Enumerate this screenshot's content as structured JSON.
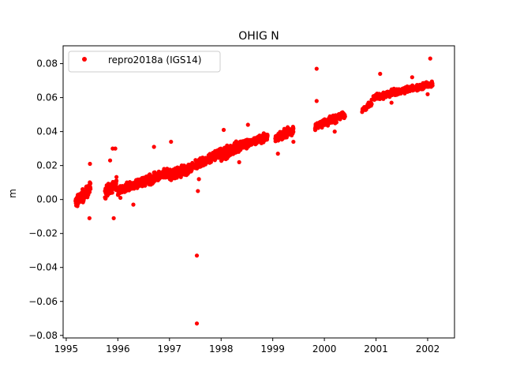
{
  "chart_data": {
    "type": "scatter",
    "title": "OHIG N",
    "xlabel": "",
    "ylabel": "m",
    "xlim": [
      1994.94,
      2002.52
    ],
    "ylim": [
      -0.0815,
      0.0905
    ],
    "xticks": [
      1995,
      1996,
      1997,
      1998,
      1999,
      2000,
      2001,
      2002
    ],
    "xtick_labels": [
      "1995",
      "1996",
      "1997",
      "1998",
      "1999",
      "2000",
      "2001",
      "2002"
    ],
    "yticks": [
      -0.08,
      -0.06,
      -0.04,
      -0.02,
      0.0,
      0.02,
      0.04,
      0.06,
      0.08
    ],
    "ytick_labels": [
      "−0.08",
      "−0.06",
      "−0.04",
      "−0.02",
      "0.00",
      "0.02",
      "0.04",
      "0.06",
      "0.08"
    ],
    "grid": false,
    "legend_position": "top-left",
    "series": [
      {
        "name": "repro2018a (IGS14)",
        "color": "#ff0000",
        "marker": "circle",
        "clusters": [
          {
            "x0": 1995.18,
            "x1": 1995.32,
            "y0": -0.002,
            "y1": 0.003,
            "spread": 0.005,
            "n": 80
          },
          {
            "x0": 1995.32,
            "x1": 1995.47,
            "y0": 0.0,
            "y1": 0.008,
            "spread": 0.006,
            "n": 70
          },
          {
            "x0": 1995.75,
            "x1": 1995.98,
            "y0": 0.004,
            "y1": 0.01,
            "spread": 0.006,
            "n": 90
          },
          {
            "x0": 1996.0,
            "x1": 1996.5,
            "y0": 0.005,
            "y1": 0.011,
            "spread": 0.004,
            "n": 220
          },
          {
            "x0": 1996.5,
            "x1": 1997.0,
            "y0": 0.01,
            "y1": 0.016,
            "spread": 0.005,
            "n": 220
          },
          {
            "x0": 1997.0,
            "x1": 1997.45,
            "y0": 0.014,
            "y1": 0.019,
            "spread": 0.005,
            "n": 190
          },
          {
            "x0": 1997.5,
            "x1": 1998.0,
            "y0": 0.02,
            "y1": 0.028,
            "spread": 0.005,
            "n": 240
          },
          {
            "x0": 1998.0,
            "x1": 1998.4,
            "y0": 0.026,
            "y1": 0.032,
            "spread": 0.005,
            "n": 220
          },
          {
            "x0": 1998.4,
            "x1": 1998.9,
            "y0": 0.032,
            "y1": 0.037,
            "spread": 0.004,
            "n": 240
          },
          {
            "x0": 1999.05,
            "x1": 1999.4,
            "y0": 0.036,
            "y1": 0.041,
            "spread": 0.004,
            "n": 150
          },
          {
            "x0": 1999.82,
            "x1": 2000.4,
            "y0": 0.043,
            "y1": 0.05,
            "spread": 0.004,
            "n": 180
          },
          {
            "x0": 2000.72,
            "x1": 2000.92,
            "y0": 0.052,
            "y1": 0.057,
            "spread": 0.003,
            "n": 40
          },
          {
            "x0": 2000.95,
            "x1": 2001.5,
            "y0": 0.06,
            "y1": 0.064,
            "spread": 0.003,
            "n": 220
          },
          {
            "x0": 2001.5,
            "x1": 2002.1,
            "y0": 0.064,
            "y1": 0.068,
            "spread": 0.003,
            "n": 260
          }
        ],
        "extra_points": [
          {
            "x": 1997.53,
            "y": -0.033
          },
          {
            "x": 1997.53,
            "y": -0.073
          },
          {
            "x": 1995.45,
            "y": -0.011
          },
          {
            "x": 1995.92,
            "y": -0.011
          },
          {
            "x": 1995.9,
            "y": 0.03
          },
          {
            "x": 1995.95,
            "y": 0.03
          },
          {
            "x": 1995.46,
            "y": 0.021
          },
          {
            "x": 1995.85,
            "y": 0.023
          },
          {
            "x": 1996.7,
            "y": 0.031
          },
          {
            "x": 1997.03,
            "y": 0.034
          },
          {
            "x": 1997.55,
            "y": 0.005
          },
          {
            "x": 1997.57,
            "y": 0.012
          },
          {
            "x": 1999.85,
            "y": 0.077
          },
          {
            "x": 1999.85,
            "y": 0.058
          },
          {
            "x": 2002.05,
            "y": 0.083
          },
          {
            "x": 2001.08,
            "y": 0.074
          },
          {
            "x": 1999.1,
            "y": 0.027
          },
          {
            "x": 1999.4,
            "y": 0.034
          },
          {
            "x": 1998.05,
            "y": 0.041
          },
          {
            "x": 1998.52,
            "y": 0.044
          },
          {
            "x": 1998.35,
            "y": 0.022
          },
          {
            "x": 1996.3,
            "y": -0.003
          },
          {
            "x": 1996.05,
            "y": 0.001
          },
          {
            "x": 2000.2,
            "y": 0.04
          },
          {
            "x": 2001.7,
            "y": 0.072
          },
          {
            "x": 2001.3,
            "y": 0.057
          },
          {
            "x": 2002.0,
            "y": 0.062
          }
        ]
      }
    ]
  }
}
